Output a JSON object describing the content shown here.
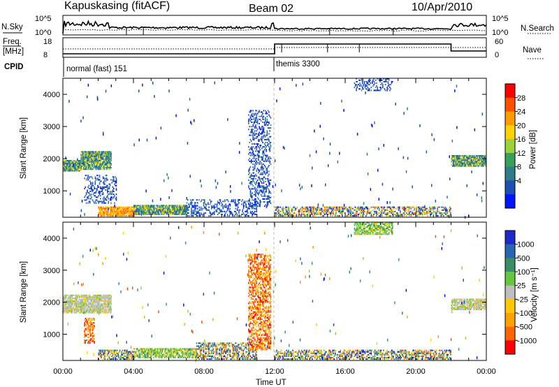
{
  "header": {
    "station": "Kapuskasing (fitACF)",
    "beam": "Beam 02",
    "date": "10/Apr/2010"
  },
  "top_panels": {
    "nsky_label": "N.Sky",
    "nsky_ticks": [
      "10^5",
      "10^0"
    ],
    "nsearch_ticks": [
      "10^5",
      "10^0"
    ],
    "nsearch_label": "N.Search",
    "freq_label_1": "Freq.",
    "freq_label_2": "[MHz]",
    "freq_ticks": [
      "18",
      "8"
    ],
    "nave_ticks": [
      "60",
      "0"
    ],
    "nave_label": "Nave",
    "cpid_label": "CPID",
    "cpid_1": "normal (fast) 151",
    "cpid_2": "themis 3300"
  },
  "power_colorbar": {
    "label": "Power [dB]",
    "ticks": [
      "28",
      "24",
      "20",
      "16",
      "12",
      "8",
      "4"
    ],
    "colors": [
      "#ff0000",
      "#ff5000",
      "#ff9b00",
      "#ffd200",
      "#9bd23c",
      "#37a05a",
      "#2d7d8c",
      "#1e50b4",
      "#0014ff"
    ]
  },
  "velocity_colorbar": {
    "label": "Velocity [m s⁻¹]",
    "ticks": [
      "1000",
      "500",
      "100",
      "25",
      "-25",
      "-100",
      "-500",
      "-1000"
    ],
    "colors": [
      "#1e28c8",
      "#2864b4",
      "#3c8c64",
      "#64c83c",
      "#bebebe",
      "#ffc800",
      "#ffa000",
      "#ff6400",
      "#ff0000"
    ]
  },
  "chart_data": [
    {
      "type": "heatmap",
      "name": "power",
      "xlabel": "",
      "ylabel": "Slant Range [km]",
      "x_ticks": [
        "00:00",
        "04:00",
        "08:00",
        "12:00",
        "16:00",
        "20:00",
        "00:00"
      ],
      "y_ticks": [
        "1000",
        "2000",
        "3000",
        "4000"
      ],
      "xlim": [
        0,
        24
      ],
      "ylim": [
        180,
        4500
      ],
      "regions": [
        {
          "t": [
            0.0,
            1.0
          ],
          "r": [
            1600,
            1950
          ],
          "level": "moderate"
        },
        {
          "t": [
            1.0,
            2.7
          ],
          "r": [
            1650,
            2200
          ],
          "level": "moderate"
        },
        {
          "t": [
            1.2,
            3.0
          ],
          "r": [
            600,
            1500
          ],
          "level": "low"
        },
        {
          "t": [
            2.0,
            4.0
          ],
          "r": [
            200,
            500
          ],
          "level": "high"
        },
        {
          "t": [
            4.0,
            7.0
          ],
          "r": [
            250,
            550
          ],
          "level": "moderate"
        },
        {
          "t": [
            7.0,
            11.0
          ],
          "r": [
            200,
            700
          ],
          "level": "low"
        },
        {
          "t": [
            10.5,
            11.8
          ],
          "r": [
            500,
            3500
          ],
          "level": "low"
        },
        {
          "t": [
            12.0,
            22.0
          ],
          "r": [
            200,
            500
          ],
          "level": "mixed"
        },
        {
          "t": [
            16.5,
            18.7
          ],
          "r": [
            4100,
            4500
          ],
          "level": "low"
        },
        {
          "t": [
            22.0,
            24.0
          ],
          "r": [
            1750,
            2100
          ],
          "level": "moderate"
        }
      ]
    },
    {
      "type": "heatmap",
      "name": "velocity",
      "xlabel": "Time UT",
      "ylabel": "Slant Range [km]",
      "x_ticks": [
        "00:00",
        "04:00",
        "08:00",
        "12:00",
        "16:00",
        "20:00",
        "00:00"
      ],
      "y_ticks": [
        "1000",
        "2000",
        "3000",
        "4000"
      ],
      "xlim": [
        0,
        24
      ],
      "ylim": [
        180,
        4500
      ],
      "regions": [
        {
          "t": [
            0.0,
            2.7
          ],
          "r": [
            1650,
            2200
          ],
          "level": "near-zero"
        },
        {
          "t": [
            1.2,
            1.8
          ],
          "r": [
            700,
            1500
          ],
          "level": "negative"
        },
        {
          "t": [
            2.0,
            4.0
          ],
          "r": [
            200,
            500
          ],
          "level": "mixed"
        },
        {
          "t": [
            4.0,
            7.5
          ],
          "r": [
            250,
            550
          ],
          "level": "positive"
        },
        {
          "t": [
            7.5,
            11.0
          ],
          "r": [
            200,
            700
          ],
          "level": "mixed"
        },
        {
          "t": [
            10.5,
            11.8
          ],
          "r": [
            500,
            3500
          ],
          "level": "negative"
        },
        {
          "t": [
            12.0,
            22.0
          ],
          "r": [
            200,
            500
          ],
          "level": "mixed"
        },
        {
          "t": [
            16.5,
            18.7
          ],
          "r": [
            4100,
            4500
          ],
          "level": "positive"
        },
        {
          "t": [
            22.0,
            24.0
          ],
          "r": [
            1750,
            2100
          ],
          "level": "near-zero"
        }
      ]
    }
  ]
}
